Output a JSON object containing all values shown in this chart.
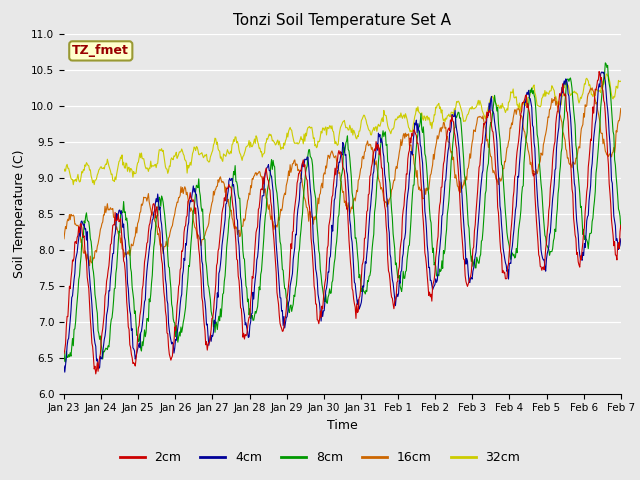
{
  "title": "Tonzi Soil Temperature Set A",
  "xlabel": "Time",
  "ylabel": "Soil Temperature (C)",
  "ylim": [
    6.0,
    11.0
  ],
  "yticks": [
    6.0,
    6.5,
    7.0,
    7.5,
    8.0,
    8.5,
    9.0,
    9.5,
    10.0,
    10.5,
    11.0
  ],
  "xtick_labels": [
    "Jan 23",
    "Jan 24",
    "Jan 25",
    "Jan 26",
    "Jan 27",
    "Jan 28",
    "Jan 29",
    "Jan 30",
    "Jan 31",
    "Feb 1",
    "Feb 2",
    "Feb 3",
    "Feb 4",
    "Feb 5",
    "Feb 6",
    "Feb 7"
  ],
  "series_colors": {
    "2cm": "#cc0000",
    "4cm": "#000099",
    "8cm": "#009900",
    "16cm": "#cc6600",
    "32cm": "#cccc00"
  },
  "annotation_text": "TZ_fmet",
  "annotation_color": "#990000",
  "annotation_bg": "#ffffcc",
  "annotation_border": "#999933",
  "bg_color": "#e8e8e8",
  "fig_bg_color": "#e8e8e8"
}
